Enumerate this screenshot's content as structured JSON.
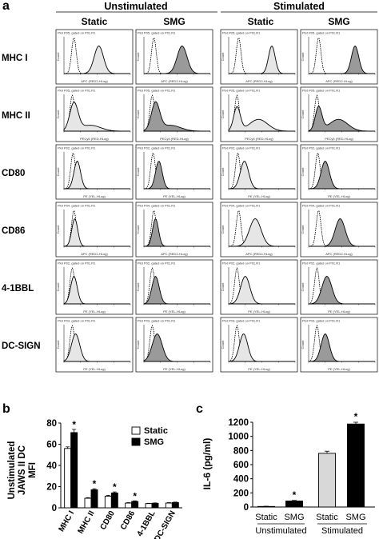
{
  "panel_a": {
    "letter": "a",
    "group_headers": [
      "Unstimulated",
      "Stimulated"
    ],
    "column_headers": [
      "Static",
      "SMG",
      "Static",
      "SMG"
    ],
    "row_labels": [
      "MHC I",
      "MHC II",
      "CD80",
      "CD86",
      "4-1BBL",
      "DC-SIGN"
    ],
    "plot_titles": [
      [
        "Plot P05, gated on P01.R1",
        "Plot P05, gated on P01.R1",
        "Plot P05, gated on P01.R1",
        "Plot P05, gated on P01.R1"
      ],
      [
        "Plot P05, gated on P01.R1",
        "Plot P05, gated on P01.R1",
        "Plot P05, gated on P01.R1",
        "Plot P05, gated on P01.R1"
      ],
      [
        "Plot P02, gated on P01.R1",
        "Plot P02, gated on P01.R1",
        "Plot P02, gated on P01.R1",
        "Plot P02, gated on P01.R1"
      ],
      [
        "Plot P04, gated on P01.R1",
        "Plot P04, gated on P01.R1",
        "Plot P04, gated on P01.R1",
        "Plot P04, gated on P01.R1"
      ],
      [
        "Plot P02, gated on P01.R1",
        "Plot P02, gated on P01.R1",
        "Plot P02, gated on P01.R1",
        "Plot P02, gated on P01.R1"
      ],
      [
        "Plot P03, gated on P01.R1",
        "Plot P03, gated on P01.R1",
        "Plot P03, gated on P01.R1",
        "Plot P03, gated on P01.R1"
      ]
    ],
    "x_axis_labels": [
      "APC (RED2-HLog)",
      "PECy5 (RED-HLog)",
      "PE (YEL-HLog)",
      "APC (RED2-HLog)",
      "PE (YEL-HLog)",
      "PE (YEL-HLog)"
    ],
    "y_axis_label": "Count",
    "fill_colors": [
      "#e6e6e6",
      "#9a9a9a",
      "#e6e6e6",
      "#9a9a9a"
    ],
    "histograms": [
      [
        {
          "isotype_peak": 0.6,
          "stain_peak": 2.1,
          "stain_width": 0.28
        },
        {
          "isotype_peak": 0.6,
          "stain_peak": 2.3,
          "stain_width": 0.3
        },
        {
          "isotype_peak": 0.6,
          "stain_peak": 2.6,
          "stain_width": 0.2
        },
        {
          "isotype_peak": 0.6,
          "stain_peak": 2.8,
          "stain_width": 0.22
        }
      ],
      [
        {
          "isotype_peak": 0.5,
          "stain_peak": 0.6,
          "stain_width": 0.25,
          "tail": true
        },
        {
          "isotype_peak": 0.5,
          "stain_peak": 0.7,
          "stain_width": 0.25,
          "tail": true
        },
        {
          "isotype_peak": 0.5,
          "stain_peak": 0.5,
          "stain_width": 0.2,
          "bimodal": true
        },
        {
          "isotype_peak": 0.5,
          "stain_peak": 0.6,
          "stain_width": 0.2,
          "bimodal": true
        }
      ],
      [
        {
          "isotype_peak": 0.55,
          "stain_peak": 0.8,
          "stain_width": 0.2
        },
        {
          "isotype_peak": 0.55,
          "stain_peak": 0.9,
          "stain_width": 0.2
        },
        {
          "isotype_peak": 0.55,
          "stain_peak": 0.95,
          "stain_width": 0.25
        },
        {
          "isotype_peak": 0.55,
          "stain_peak": 1.0,
          "stain_width": 0.25
        }
      ],
      [
        {
          "isotype_peak": 0.6,
          "stain_peak": 0.65,
          "stain_width": 0.18
        },
        {
          "isotype_peak": 0.6,
          "stain_peak": 0.7,
          "stain_width": 0.18
        },
        {
          "isotype_peak": 0.6,
          "stain_peak": 1.6,
          "stain_width": 0.35
        },
        {
          "isotype_peak": 0.6,
          "stain_peak": 1.9,
          "stain_width": 0.3
        }
      ],
      [
        {
          "isotype_peak": 0.5,
          "stain_peak": 0.6,
          "stain_width": 0.2
        },
        {
          "isotype_peak": 0.5,
          "stain_peak": 0.7,
          "stain_width": 0.22
        },
        {
          "isotype_peak": 0.5,
          "stain_peak": 1.0,
          "stain_width": 0.28
        },
        {
          "isotype_peak": 0.5,
          "stain_peak": 1.1,
          "stain_width": 0.3
        }
      ],
      [
        {
          "isotype_peak": 0.5,
          "stain_peak": 0.7,
          "stain_width": 0.25
        },
        {
          "isotype_peak": 0.5,
          "stain_peak": 0.8,
          "stain_width": 0.3
        },
        {
          "isotype_peak": 0.5,
          "stain_peak": 0.9,
          "stain_width": 0.25
        },
        {
          "isotype_peak": 0.5,
          "stain_peak": 1.0,
          "stain_width": 0.25
        }
      ]
    ]
  },
  "chart_data": [
    {
      "type": "bar",
      "panel": "b",
      "categories": [
        "MHC I",
        "MHC II",
        "CD80",
        "CD86",
        "4-1BBL",
        "DC-SIGN"
      ],
      "series": [
        {
          "name": "Static",
          "values": [
            56,
            9,
            11,
            4.5,
            4,
            4.5
          ],
          "errors": [
            1.5,
            0.6,
            0.8,
            0.4,
            0.3,
            0.4
          ],
          "color": "#ffffff"
        },
        {
          "name": "SMG",
          "values": [
            71,
            17,
            14,
            6,
            4.3,
            5
          ],
          "errors": [
            3,
            1,
            1,
            0.6,
            0.3,
            0.4
          ],
          "color": "#000000"
        }
      ],
      "significance": [
        true,
        true,
        true,
        true,
        false,
        false
      ],
      "significance_marker": "*",
      "ylabel_lines": [
        "Unstimulated",
        "JAWS II DC",
        "MFI"
      ],
      "ylim": [
        0,
        80
      ],
      "yticks": [
        0,
        20,
        40,
        60,
        80
      ],
      "legend": "top-right"
    },
    {
      "type": "bar",
      "panel": "c",
      "categories": [
        "Static",
        "SMG",
        "Static",
        "SMG"
      ],
      "groups": [
        "Unstimulated",
        "Stimulated"
      ],
      "values": [
        8,
        85,
        760,
        1175
      ],
      "errors": [
        3,
        8,
        30,
        25
      ],
      "colors": [
        "#ffffff",
        "#000000",
        "#d8d8d8",
        "#000000"
      ],
      "significance": [
        false,
        true,
        false,
        true
      ],
      "significance_marker": "*",
      "ylabel": "IL-6 (pg/ml)",
      "ylim": [
        0,
        1200
      ],
      "yticks": [
        0,
        200,
        400,
        600,
        800,
        1000,
        1200
      ]
    }
  ]
}
